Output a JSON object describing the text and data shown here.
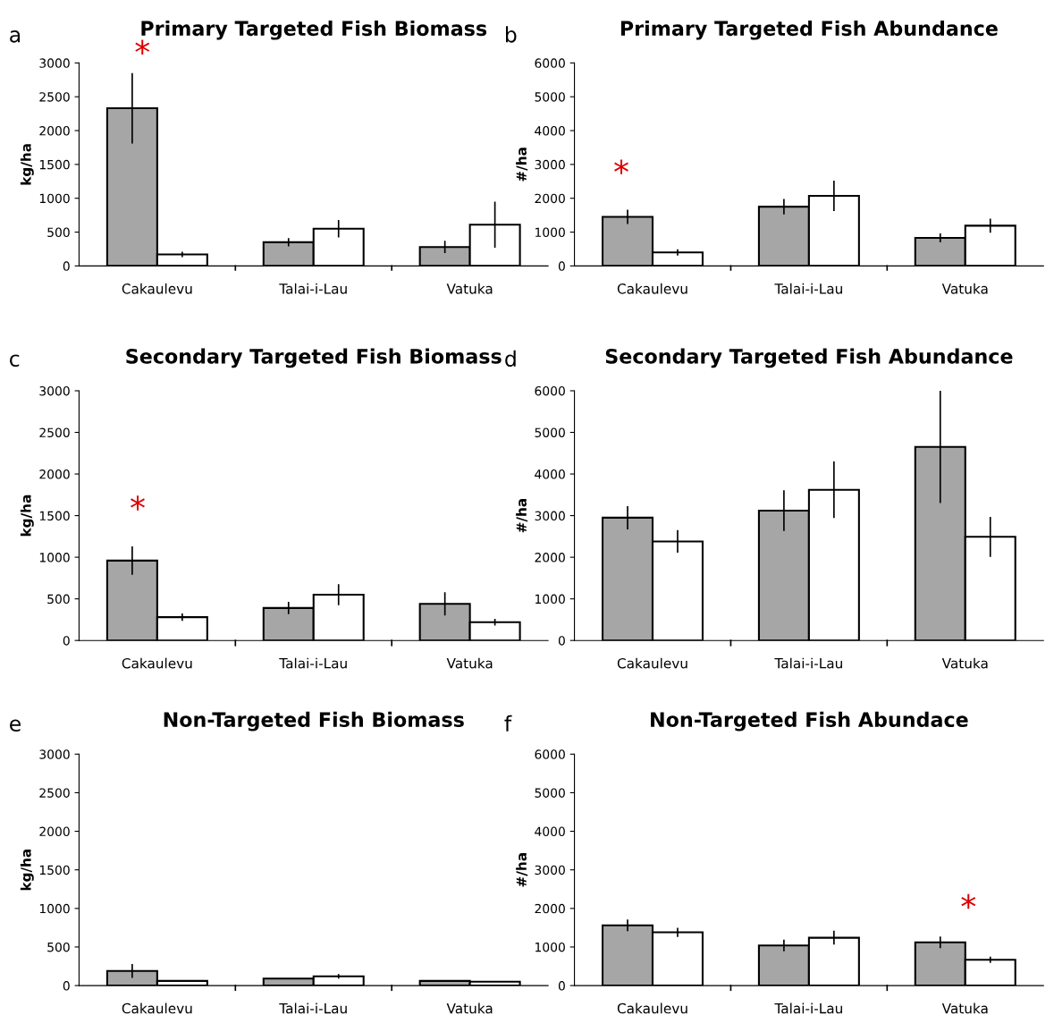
{
  "chart_data": [
    {
      "type": "bar",
      "title": "Primary Targeted Fish Biomass",
      "ylabel": "kg/ha",
      "categories": [
        "Cakaulevu",
        "Talai-i-Lau",
        "Vatuka"
      ],
      "ylim": [
        0,
        3000
      ],
      "yticks": [
        0,
        500,
        1000,
        1500,
        2000,
        2500,
        3000
      ],
      "annotations": [
        "a",
        "*"
      ],
      "series": [
        {
          "color": "#a6a6a6",
          "values": [
            2330,
            350,
            280
          ],
          "errors": [
            520,
            60,
            90
          ]
        },
        {
          "color": "#ffffff",
          "values": [
            170,
            550,
            610
          ],
          "errors": [
            40,
            130,
            340
          ]
        }
      ]
    },
    {
      "type": "bar",
      "title": "Primary Targeted Fish Abundance",
      "ylabel": "#/ha",
      "categories": [
        "Cakaulevu",
        "Talai-i-Lau",
        "Vatuka"
      ],
      "ylim": [
        0,
        6000
      ],
      "yticks": [
        0,
        1000,
        2000,
        3000,
        4000,
        5000,
        6000
      ],
      "annotations": [
        "b",
        "*"
      ],
      "series": [
        {
          "color": "#a6a6a6",
          "values": [
            1450,
            1750,
            830
          ],
          "errors": [
            210,
            230,
            130
          ]
        },
        {
          "color": "#ffffff",
          "values": [
            400,
            2070,
            1190
          ],
          "errors": [
            90,
            450,
            210
          ]
        }
      ]
    },
    {
      "type": "bar",
      "title": "Secondary Targeted Fish Biomass",
      "ylabel": "kg/ha",
      "categories": [
        "Cakaulevu",
        "Talai-i-Lau",
        "Vatuka"
      ],
      "ylim": [
        0,
        3000
      ],
      "yticks": [
        0,
        500,
        1000,
        1500,
        2000,
        2500,
        3000
      ],
      "annotations": [
        "c",
        "*"
      ],
      "series": [
        {
          "color": "#a6a6a6",
          "values": [
            960,
            390,
            440
          ],
          "errors": [
            170,
            75,
            140
          ]
        },
        {
          "color": "#ffffff",
          "values": [
            280,
            550,
            220
          ],
          "errors": [
            45,
            125,
            40
          ]
        }
      ]
    },
    {
      "type": "bar",
      "title": "Secondary Targeted Fish Abundance",
      "ylabel": "#/ha",
      "categories": [
        "Cakaulevu",
        "Talai-i-Lau",
        "Vatuka"
      ],
      "ylim": [
        0,
        6000
      ],
      "yticks": [
        0,
        1000,
        2000,
        3000,
        4000,
        5000,
        6000
      ],
      "annotations": [
        "d"
      ],
      "series": [
        {
          "color": "#a6a6a6",
          "values": [
            2950,
            3120,
            4650
          ],
          "errors": [
            280,
            490,
            1350
          ]
        },
        {
          "color": "#ffffff",
          "values": [
            2380,
            3620,
            2490
          ],
          "errors": [
            270,
            680,
            480
          ]
        }
      ]
    },
    {
      "type": "bar",
      "title": "Non-Targeted Fish Biomass",
      "ylabel": "kg/ha",
      "categories": [
        "Cakaulevu",
        "Talai-i-Lau",
        "Vatuka"
      ],
      "ylim": [
        0,
        3000
      ],
      "yticks": [
        0,
        500,
        1000,
        1500,
        2000,
        2500,
        3000
      ],
      "annotations": [
        "e"
      ],
      "series": [
        {
          "color": "#a6a6a6",
          "values": [
            190,
            90,
            60
          ],
          "errors": [
            90,
            null,
            null
          ]
        },
        {
          "color": "#ffffff",
          "values": [
            60,
            120,
            50
          ],
          "errors": [
            null,
            30,
            null
          ]
        }
      ]
    },
    {
      "type": "bar",
      "title": "Non-Targeted Fish Abundace",
      "ylabel": "#/ha",
      "categories": [
        "Cakaulevu",
        "Talai-i-Lau",
        "Vatuka"
      ],
      "ylim": [
        0,
        6000
      ],
      "yticks": [
        0,
        1000,
        2000,
        3000,
        4000,
        5000,
        6000
      ],
      "annotations": [
        "f",
        "*"
      ],
      "series": [
        {
          "color": "#a6a6a6",
          "values": [
            1560,
            1040,
            1120
          ],
          "errors": [
            150,
            150,
            150
          ]
        },
        {
          "color": "#ffffff",
          "values": [
            1380,
            1240,
            670
          ],
          "errors": [
            120,
            180,
            80
          ]
        }
      ]
    }
  ]
}
